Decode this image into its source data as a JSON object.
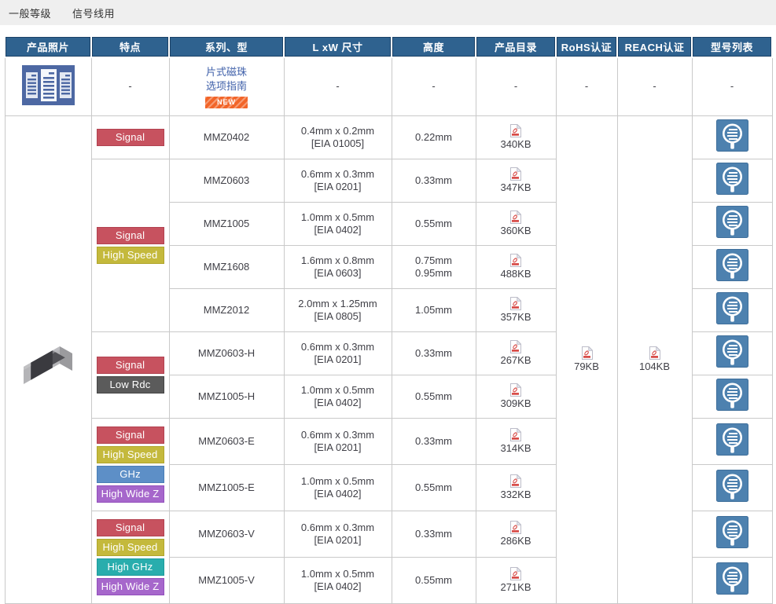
{
  "page": {
    "breadcrumb": [
      "一般等级",
      "信号线用"
    ]
  },
  "icons": {
    "catalog_icon": "document-list",
    "pdf_icon": "pdf-file",
    "models_icon": "search-list",
    "photo": "chip-bead-component"
  },
  "colors": {
    "header_bg": "#2f628f",
    "header_edge": "#1b4166",
    "topbar_bg": "#efefef",
    "link_blue": "#3e5fa9",
    "new_badge_orange": "#f26529",
    "icon_blue": "#4d81af",
    "pdf_red": "#d64541"
  },
  "table": {
    "dash": "-",
    "headers": [
      "产品照片",
      "特点",
      "系列、型",
      "L xW 尺寸",
      "高度",
      "产品目录",
      "RoHS认证",
      "REACH认证",
      "型号列表"
    ],
    "guide": {
      "link1": "片式磁珠",
      "link2": "选项指南",
      "badge": "NEW"
    },
    "rohs_size": "79KB",
    "reach_size": "104KB",
    "badge_styles": {
      "Signal": {
        "bg": "#c7525f",
        "border": "#b24250"
      },
      "High Speed": {
        "bg": "#c4b93c",
        "border": "#b0a52c"
      },
      "Low Rdc": {
        "bg": "#5b5b5b",
        "border": "#454545"
      },
      "GHz": {
        "bg": "#5d8fc7",
        "border": "#497db5"
      },
      "High GHz": {
        "bg": "#29adad",
        "border": "#1e9a9a"
      },
      "High Wide Z": {
        "bg": "#a667cb",
        "border": "#934fbc"
      }
    },
    "feature_groups": [
      {
        "start": 0,
        "span": 1,
        "badges": [
          "Signal"
        ]
      },
      {
        "start": 1,
        "span": 4,
        "badges": [
          "Signal",
          "High Speed"
        ]
      },
      {
        "start": 5,
        "span": 2,
        "badges": [
          "Signal",
          "Low Rdc"
        ]
      },
      {
        "start": 7,
        "span": 2,
        "badges": [
          "Signal",
          "High Speed",
          "GHz",
          "High Wide Z"
        ]
      },
      {
        "start": 9,
        "span": 2,
        "badges": [
          "Signal",
          "High Speed",
          "High GHz",
          "High Wide Z"
        ]
      }
    ],
    "rows": [
      {
        "series": "MMZ0402",
        "dims": "0.4mm x 0.2mm",
        "eia": "[EIA 01005]",
        "heights": [
          "0.22mm"
        ],
        "pdf": "340KB"
      },
      {
        "series": "MMZ0603",
        "dims": "0.6mm x 0.3mm",
        "eia": "[EIA 0201]",
        "heights": [
          "0.33mm"
        ],
        "pdf": "347KB"
      },
      {
        "series": "MMZ1005",
        "dims": "1.0mm x 0.5mm",
        "eia": "[EIA 0402]",
        "heights": [
          "0.55mm"
        ],
        "pdf": "360KB"
      },
      {
        "series": "MMZ1608",
        "dims": "1.6mm x 0.8mm",
        "eia": "[EIA 0603]",
        "heights": [
          "0.75mm",
          "0.95mm"
        ],
        "pdf": "488KB"
      },
      {
        "series": "MMZ2012",
        "dims": "2.0mm x 1.25mm",
        "eia": "[EIA 0805]",
        "heights": [
          "1.05mm"
        ],
        "pdf": "357KB"
      },
      {
        "series": "MMZ0603-H",
        "dims": "0.6mm x 0.3mm",
        "eia": "[EIA 0201]",
        "heights": [
          "0.33mm"
        ],
        "pdf": "267KB"
      },
      {
        "series": "MMZ1005-H",
        "dims": "1.0mm x 0.5mm",
        "eia": "[EIA 0402]",
        "heights": [
          "0.55mm"
        ],
        "pdf": "309KB"
      },
      {
        "series": "MMZ0603-E",
        "dims": "0.6mm x 0.3mm",
        "eia": "[EIA 0201]",
        "heights": [
          "0.33mm"
        ],
        "pdf": "314KB"
      },
      {
        "series": "MMZ1005-E",
        "dims": "1.0mm x 0.5mm",
        "eia": "[EIA 0402]",
        "heights": [
          "0.55mm"
        ],
        "pdf": "332KB"
      },
      {
        "series": "MMZ0603-V",
        "dims": "0.6mm x 0.3mm",
        "eia": "[EIA 0201]",
        "heights": [
          "0.33mm"
        ],
        "pdf": "286KB"
      },
      {
        "series": "MMZ1005-V",
        "dims": "1.0mm x 0.5mm",
        "eia": "[EIA 0402]",
        "heights": [
          "0.55mm"
        ],
        "pdf": "271KB"
      }
    ]
  }
}
